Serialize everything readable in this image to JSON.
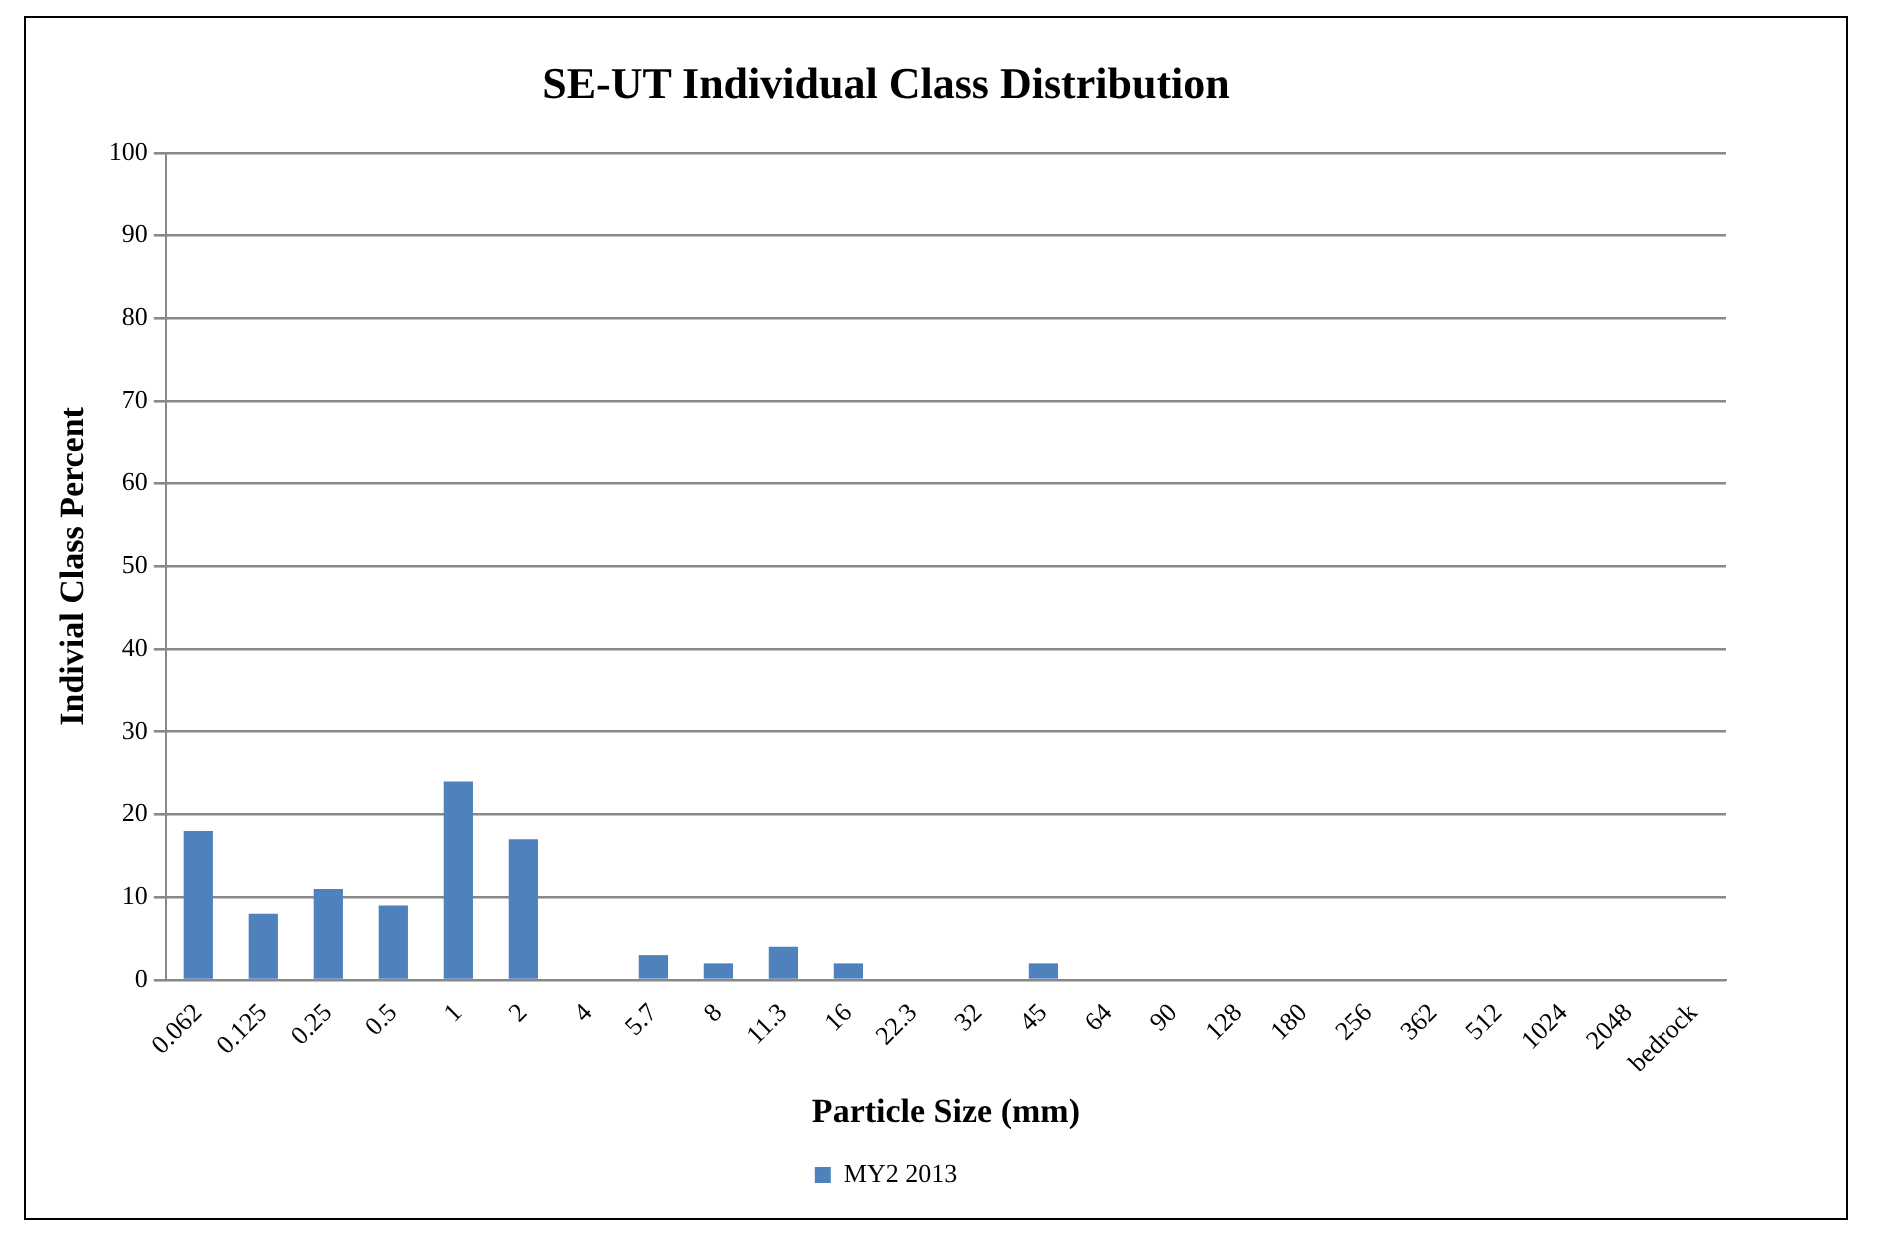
{
  "chart_data": {
    "type": "bar",
    "title": "SE-UT Individual Class Distribution",
    "xlabel": "Particle Size (mm)",
    "ylabel": "Indivial Class Percent",
    "categories": [
      "0.062",
      "0.125",
      "0.25",
      "0.5",
      "1",
      "2",
      "4",
      "5.7",
      "8",
      "11.3",
      "16",
      "22.3",
      "32",
      "45",
      "64",
      "90",
      "128",
      "180",
      "256",
      "362",
      "512",
      "1024",
      "2048",
      "bedrock"
    ],
    "series": [
      {
        "name": "MY2 2013",
        "color": "#4f81bd",
        "values": [
          18,
          8,
          11,
          9,
          24,
          17,
          0,
          3,
          2,
          4,
          2,
          0,
          0,
          2,
          0,
          0,
          0,
          0,
          0,
          0,
          0,
          0,
          0,
          0
        ]
      }
    ],
    "ylim": [
      0,
      100
    ],
    "yticks": [
      0,
      10,
      20,
      30,
      40,
      50,
      60,
      70,
      80,
      90,
      100
    ],
    "grid": "y",
    "legend": "bottom"
  }
}
